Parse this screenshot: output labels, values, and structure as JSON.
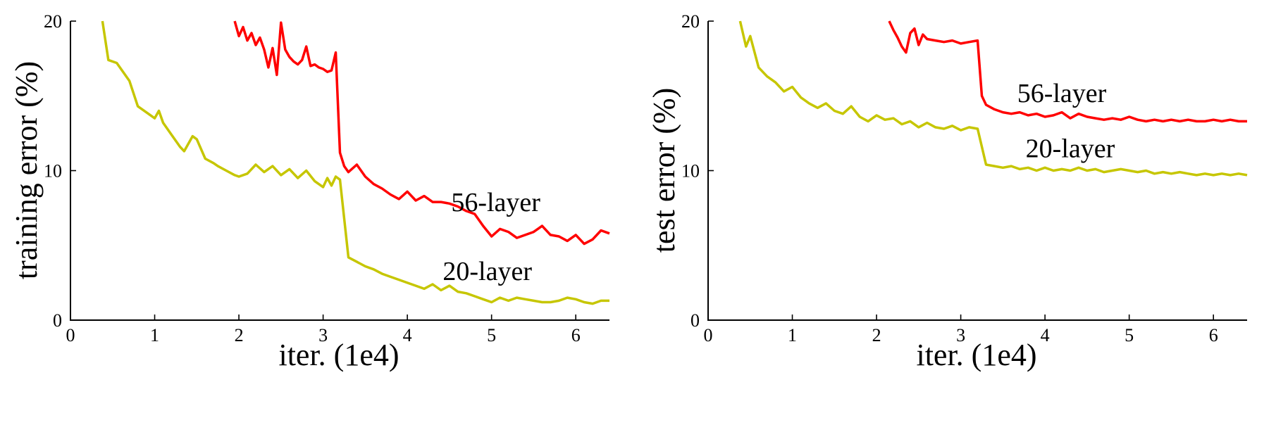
{
  "figure": {
    "background": "#ffffff",
    "text_color": "#000000",
    "axis_color": "#000000"
  },
  "chart_data": [
    {
      "type": "line",
      "title": "",
      "xlabel": "iter. (1e4)",
      "ylabel": "training error (%)",
      "xlim": [
        0,
        6.4
      ],
      "ylim": [
        0,
        20
      ],
      "xticks": [
        0,
        1,
        2,
        3,
        4,
        5,
        6
      ],
      "yticks": [
        0,
        10,
        20
      ],
      "grid": false,
      "legend_position": "inline-annotations",
      "annotations": [
        {
          "text": "56-layer",
          "x": 5.05,
          "y": 7.9
        },
        {
          "text": "20-layer",
          "x": 4.95,
          "y": 3.3
        }
      ],
      "series": [
        {
          "name": "56-layer",
          "color": "#ff0000",
          "x": [
            1.95,
            2.0,
            2.05,
            2.1,
            2.15,
            2.2,
            2.25,
            2.3,
            2.35,
            2.4,
            2.45,
            2.5,
            2.55,
            2.6,
            2.65,
            2.7,
            2.75,
            2.8,
            2.85,
            2.9,
            2.95,
            3.0,
            3.05,
            3.1,
            3.15,
            3.2,
            3.25,
            3.3,
            3.4,
            3.5,
            3.6,
            3.7,
            3.8,
            3.9,
            4.0,
            4.1,
            4.2,
            4.3,
            4.4,
            4.5,
            4.6,
            4.7,
            4.8,
            4.9,
            5.0,
            5.1,
            5.2,
            5.3,
            5.4,
            5.5,
            5.6,
            5.7,
            5.8,
            5.9,
            6.0,
            6.1,
            6.2,
            6.3,
            6.4
          ],
          "y": [
            20,
            19.0,
            19.6,
            18.7,
            19.2,
            18.4,
            18.9,
            18.1,
            16.9,
            18.2,
            16.4,
            19.9,
            18.1,
            17.6,
            17.3,
            17.1,
            17.4,
            18.3,
            17.0,
            17.1,
            16.9,
            16.8,
            16.6,
            16.7,
            17.9,
            11.2,
            10.3,
            9.9,
            10.4,
            9.6,
            9.1,
            8.8,
            8.4,
            8.1,
            8.6,
            8.0,
            8.3,
            7.9,
            7.9,
            7.8,
            7.6,
            7.3,
            7.1,
            6.3,
            5.6,
            6.1,
            5.9,
            5.5,
            5.7,
            5.9,
            6.3,
            5.7,
            5.6,
            5.3,
            5.7,
            5.1,
            5.4,
            6.0,
            5.8
          ]
        },
        {
          "name": "20-layer",
          "color": "#c6c600",
          "x": [
            0.38,
            0.45,
            0.55,
            0.6,
            0.7,
            0.8,
            0.9,
            1.0,
            1.05,
            1.1,
            1.2,
            1.3,
            1.35,
            1.45,
            1.5,
            1.6,
            1.7,
            1.75,
            1.85,
            1.95,
            2.0,
            2.1,
            2.2,
            2.3,
            2.4,
            2.5,
            2.6,
            2.7,
            2.8,
            2.9,
            3.0,
            3.05,
            3.1,
            3.15,
            3.2,
            3.3,
            3.4,
            3.5,
            3.6,
            3.7,
            3.8,
            3.9,
            4.0,
            4.1,
            4.2,
            4.3,
            4.4,
            4.5,
            4.6,
            4.7,
            4.8,
            4.9,
            5.0,
            5.1,
            5.2,
            5.3,
            5.4,
            5.5,
            5.6,
            5.7,
            5.8,
            5.9,
            6.0,
            6.1,
            6.2,
            6.3,
            6.4
          ],
          "y": [
            20,
            17.4,
            17.2,
            16.8,
            16.0,
            14.3,
            13.9,
            13.5,
            14.0,
            13.2,
            12.4,
            11.6,
            11.3,
            12.3,
            12.1,
            10.8,
            10.5,
            10.3,
            10.0,
            9.7,
            9.6,
            9.8,
            10.4,
            9.9,
            10.3,
            9.7,
            10.1,
            9.5,
            10.0,
            9.3,
            8.9,
            9.5,
            9.0,
            9.6,
            9.4,
            4.2,
            3.9,
            3.6,
            3.4,
            3.1,
            2.9,
            2.7,
            2.5,
            2.3,
            2.1,
            2.4,
            2.0,
            2.3,
            1.9,
            1.8,
            1.6,
            1.4,
            1.2,
            1.5,
            1.3,
            1.5,
            1.4,
            1.3,
            1.2,
            1.2,
            1.3,
            1.5,
            1.4,
            1.2,
            1.1,
            1.3,
            1.3
          ]
        }
      ]
    },
    {
      "type": "line",
      "title": "",
      "xlabel": "iter. (1e4)",
      "ylabel": "test error (%)",
      "xlim": [
        0,
        6.4
      ],
      "ylim": [
        0,
        20
      ],
      "xticks": [
        0,
        1,
        2,
        3,
        4,
        5,
        6
      ],
      "yticks": [
        0,
        10,
        20
      ],
      "grid": false,
      "legend_position": "inline-annotations",
      "annotations": [
        {
          "text": "56-layer",
          "x": 4.2,
          "y": 15.2
        },
        {
          "text": "20-layer",
          "x": 4.3,
          "y": 11.5
        }
      ],
      "series": [
        {
          "name": "56-layer",
          "color": "#ff0000",
          "x": [
            2.15,
            2.2,
            2.25,
            2.3,
            2.35,
            2.4,
            2.45,
            2.5,
            2.55,
            2.6,
            2.7,
            2.8,
            2.9,
            3.0,
            3.1,
            3.2,
            3.25,
            3.3,
            3.4,
            3.5,
            3.6,
            3.7,
            3.8,
            3.9,
            4.0,
            4.1,
            4.2,
            4.3,
            4.4,
            4.5,
            4.6,
            4.7,
            4.8,
            4.9,
            5.0,
            5.1,
            5.2,
            5.3,
            5.4,
            5.5,
            5.6,
            5.7,
            5.8,
            5.9,
            6.0,
            6.1,
            6.2,
            6.3,
            6.4
          ],
          "y": [
            20,
            19.4,
            18.9,
            18.3,
            17.9,
            19.2,
            19.5,
            18.4,
            19.1,
            18.8,
            18.7,
            18.6,
            18.7,
            18.5,
            18.6,
            18.7,
            15.0,
            14.4,
            14.1,
            13.9,
            13.8,
            13.9,
            13.7,
            13.8,
            13.6,
            13.7,
            13.9,
            13.5,
            13.8,
            13.6,
            13.5,
            13.4,
            13.5,
            13.4,
            13.6,
            13.4,
            13.3,
            13.4,
            13.3,
            13.4,
            13.3,
            13.4,
            13.3,
            13.3,
            13.4,
            13.3,
            13.4,
            13.3,
            13.3
          ]
        },
        {
          "name": "20-layer",
          "color": "#c6c600",
          "x": [
            0.38,
            0.45,
            0.5,
            0.6,
            0.7,
            0.8,
            0.9,
            1.0,
            1.1,
            1.2,
            1.3,
            1.4,
            1.5,
            1.6,
            1.7,
            1.8,
            1.9,
            2.0,
            2.1,
            2.2,
            2.3,
            2.4,
            2.5,
            2.6,
            2.7,
            2.8,
            2.9,
            3.0,
            3.1,
            3.2,
            3.3,
            3.4,
            3.5,
            3.6,
            3.7,
            3.8,
            3.9,
            4.0,
            4.1,
            4.2,
            4.3,
            4.4,
            4.5,
            4.6,
            4.7,
            4.8,
            4.9,
            5.0,
            5.1,
            5.2,
            5.3,
            5.4,
            5.5,
            5.6,
            5.7,
            5.8,
            5.9,
            6.0,
            6.1,
            6.2,
            6.3,
            6.4
          ],
          "y": [
            20,
            18.3,
            19.0,
            16.9,
            16.3,
            15.9,
            15.3,
            15.6,
            14.9,
            14.5,
            14.2,
            14.5,
            14.0,
            13.8,
            14.3,
            13.6,
            13.3,
            13.7,
            13.4,
            13.5,
            13.1,
            13.3,
            12.9,
            13.2,
            12.9,
            12.8,
            13.0,
            12.7,
            12.9,
            12.8,
            10.4,
            10.3,
            10.2,
            10.3,
            10.1,
            10.2,
            10.0,
            10.2,
            10.0,
            10.1,
            10.0,
            10.2,
            10.0,
            10.1,
            9.9,
            10.0,
            10.1,
            10.0,
            9.9,
            10.0,
            9.8,
            9.9,
            9.8,
            9.9,
            9.8,
            9.7,
            9.8,
            9.7,
            9.8,
            9.7,
            9.8,
            9.7
          ]
        }
      ]
    }
  ]
}
